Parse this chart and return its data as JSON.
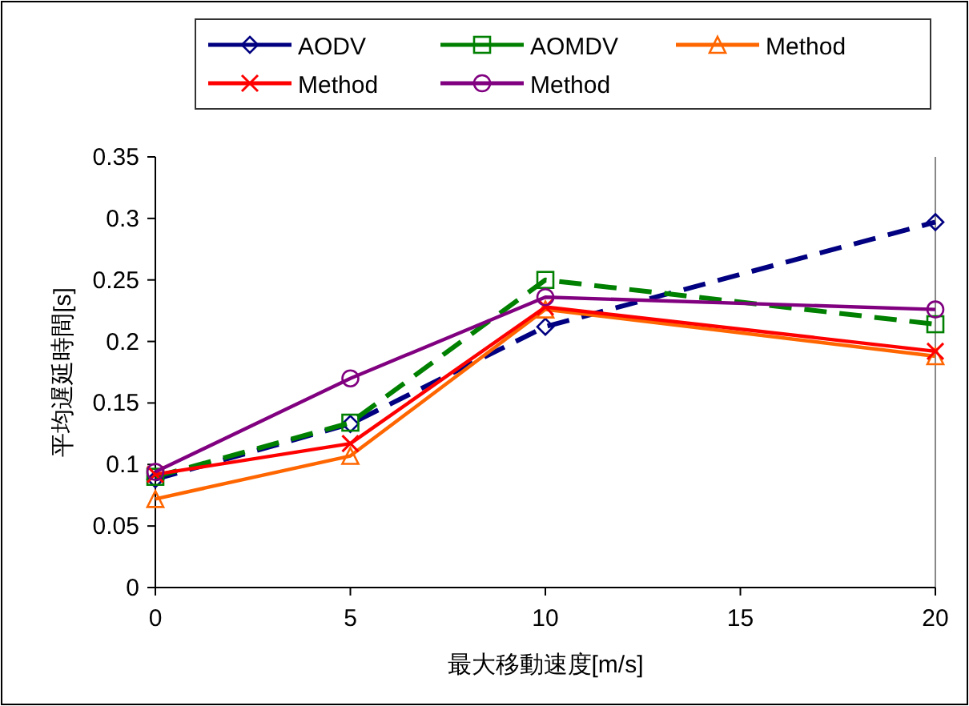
{
  "chart_data": {
    "type": "line",
    "xlabel": "最大移動速度[m/s]",
    "ylabel": "平均遅延時間[s]",
    "x": [
      0,
      5,
      10,
      20
    ],
    "xlim": [
      0,
      20
    ],
    "xticks": [
      0,
      5,
      10,
      15,
      20
    ],
    "ylim": [
      0,
      0.35
    ],
    "yticks": [
      0,
      0.05,
      0.1,
      0.15,
      0.2,
      0.25,
      0.3,
      0.35
    ],
    "legend": "top",
    "grid": false,
    "series": [
      {
        "name": "AODV",
        "color": "#000080",
        "marker": "diamond",
        "line_style": "dashed",
        "values": [
          0.088,
          0.133,
          0.212,
          0.297
        ]
      },
      {
        "name": "AOMDV",
        "color": "#008000",
        "marker": "square",
        "line_style": "dashed",
        "values": [
          0.09,
          0.134,
          0.25,
          0.214
        ]
      },
      {
        "name": "Method",
        "color": "#ff6600",
        "marker": "triangle",
        "line_style": "solid",
        "values": [
          0.072,
          0.107,
          0.226,
          0.188
        ]
      },
      {
        "name": "Method",
        "color": "#ff0000",
        "marker": "cross",
        "line_style": "solid",
        "values": [
          0.092,
          0.117,
          0.228,
          0.192
        ]
      },
      {
        "name": "Method",
        "color": "#800080",
        "marker": "circle",
        "line_style": "solid",
        "values": [
          0.094,
          0.17,
          0.236,
          0.226
        ]
      }
    ]
  }
}
